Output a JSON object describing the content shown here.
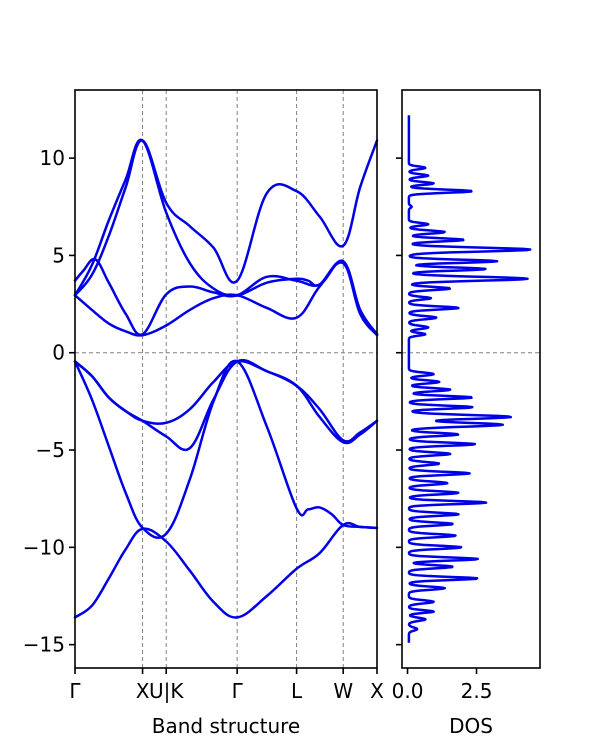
{
  "colors": {
    "line": "#0000e6",
    "grid": "#808080",
    "axis": "#000000"
  },
  "chart_data": [
    {
      "type": "line",
      "xlabel": "Band structure",
      "ylabel": "",
      "ylim": [
        -16.2,
        13.5
      ],
      "yticks": [
        -15,
        -10,
        -5,
        0,
        5,
        10
      ],
      "ytick_labels": [
        "−15",
        "−10",
        "−5",
        "0",
        "5",
        "10"
      ],
      "kpoints": [
        {
          "label": "Γ",
          "x": 0
        },
        {
          "label": "X",
          "x": 1.0
        },
        {
          "label": "U|K",
          "x": 1.35
        },
        {
          "label": "Γ",
          "x": 2.4
        },
        {
          "label": "L",
          "x": 3.28
        },
        {
          "label": "W",
          "x": 3.97
        },
        {
          "label": "X",
          "x": 4.47
        }
      ],
      "xlim": [
        0,
        4.47
      ],
      "fermi_level": 0,
      "series": [
        {
          "x": [
            0,
            0.25,
            0.5,
            0.75,
            1.0,
            1.35,
            1.7,
            2.05,
            2.4,
            2.84,
            3.28,
            3.62,
            3.97,
            4.22,
            4.47
          ],
          "values": [
            -13.6,
            -13.0,
            -11.6,
            -10.1,
            -9.05,
            -9.7,
            -11.2,
            -12.8,
            -13.6,
            -12.5,
            -11.1,
            -10.3,
            -8.85,
            -8.95,
            -9.0
          ]
        },
        {
          "x": [
            0,
            0.25,
            0.5,
            0.75,
            1.0,
            1.35,
            1.7,
            2.05,
            2.4,
            2.84,
            3.28,
            3.45,
            3.62,
            3.8,
            3.97,
            4.22,
            4.47
          ],
          "values": [
            -0.45,
            -2.4,
            -4.8,
            -7.2,
            -9.0,
            -9.3,
            -6.5,
            -2.5,
            -0.45,
            -3.8,
            -8.0,
            -8.05,
            -7.95,
            -8.3,
            -8.85,
            -8.95,
            -9.0
          ]
        },
        {
          "x": [
            0,
            0.25,
            0.5,
            0.75,
            1.0,
            1.35,
            1.7,
            2.05,
            2.4,
            2.84,
            3.28,
            3.62,
            3.97,
            4.22,
            4.47
          ],
          "values": [
            -0.45,
            -1.2,
            -2.3,
            -3.0,
            -3.5,
            -4.3,
            -4.9,
            -2.4,
            -0.45,
            -0.95,
            -1.7,
            -3.3,
            -4.6,
            -4.2,
            -3.5
          ]
        },
        {
          "x": [
            0,
            0.25,
            0.5,
            0.75,
            1.0,
            1.35,
            1.7,
            2.05,
            2.4,
            2.84,
            3.28,
            3.62,
            3.97,
            4.22,
            4.47
          ],
          "values": [
            -0.45,
            -1.2,
            -2.3,
            -3.0,
            -3.5,
            -3.6,
            -2.9,
            -1.5,
            -0.45,
            -0.95,
            -1.7,
            -2.9,
            -4.5,
            -4.1,
            -3.5
          ]
        },
        {
          "x": [
            0,
            0.25,
            0.5,
            0.75,
            1.0,
            1.35,
            1.7,
            2.05,
            2.4,
            2.84,
            3.28,
            3.62,
            3.97,
            4.22,
            4.47
          ],
          "values": [
            2.95,
            2.2,
            1.5,
            1.1,
            0.9,
            1.4,
            2.2,
            2.8,
            2.95,
            2.3,
            1.8,
            3.4,
            4.6,
            2.0,
            0.9
          ]
        },
        {
          "x": [
            0,
            0.25,
            0.5,
            0.75,
            1.0,
            1.35,
            1.7,
            2.05,
            2.4,
            2.84,
            3.28,
            3.62,
            3.97,
            4.22,
            4.47
          ],
          "values": [
            2.95,
            4.0,
            6.0,
            8.5,
            10.9,
            7.7,
            6.5,
            5.4,
            3.7,
            8.2,
            8.3,
            7.0,
            5.5,
            8.5,
            10.9
          ]
        },
        {
          "x": [
            0,
            0.25,
            0.5,
            0.75,
            1.0,
            1.35,
            1.7,
            2.05,
            2.4,
            2.84,
            3.28,
            3.45,
            3.62,
            3.97,
            4.22,
            4.47
          ],
          "values": [
            2.95,
            4.5,
            6.8,
            8.9,
            10.9,
            7.2,
            4.6,
            3.3,
            2.95,
            3.6,
            3.8,
            3.7,
            3.5,
            4.7,
            2.2,
            0.95
          ]
        },
        {
          "x": [
            0,
            0.12,
            0.3,
            0.5,
            0.75,
            1.0,
            1.35,
            1.7,
            2.05,
            2.4,
            2.84,
            3.28,
            3.62,
            3.97,
            4.22,
            4.47
          ],
          "values": [
            3.7,
            4.2,
            4.8,
            3.6,
            2.0,
            0.95,
            3.0,
            3.4,
            3.1,
            2.95,
            3.9,
            3.7,
            3.5,
            4.7,
            2.2,
            0.95
          ]
        }
      ]
    },
    {
      "type": "line",
      "xlabel": "DOS",
      "xlim": [
        -0.2,
        4.8
      ],
      "xticks": [
        0.0,
        2.5
      ],
      "xtick_labels": [
        "0.0",
        "2.5"
      ],
      "ylim": [
        -16.2,
        13.5
      ],
      "peaks": [
        {
          "e": -14.9,
          "w": 0.05,
          "a": 0.0
        },
        {
          "e": -14.2,
          "w": 0.08,
          "a": 0.3
        },
        {
          "e": -13.7,
          "w": 0.08,
          "a": 0.6
        },
        {
          "e": -13.3,
          "w": 0.07,
          "a": 0.9
        },
        {
          "e": -12.8,
          "w": 0.08,
          "a": 0.9
        },
        {
          "e": -12.1,
          "w": 0.08,
          "a": 1.3
        },
        {
          "e": -11.6,
          "w": 0.08,
          "a": 2.5
        },
        {
          "e": -11.0,
          "w": 0.08,
          "a": 1.6
        },
        {
          "e": -10.6,
          "w": 0.08,
          "a": 2.5
        },
        {
          "e": -10.0,
          "w": 0.08,
          "a": 1.9
        },
        {
          "e": -9.4,
          "w": 0.08,
          "a": 1.7
        },
        {
          "e": -8.8,
          "w": 0.08,
          "a": 1.6
        },
        {
          "e": -8.3,
          "w": 0.08,
          "a": 1.8
        },
        {
          "e": -7.7,
          "w": 0.08,
          "a": 2.8
        },
        {
          "e": -7.2,
          "w": 0.08,
          "a": 1.8
        },
        {
          "e": -6.7,
          "w": 0.08,
          "a": 1.4
        },
        {
          "e": -6.2,
          "w": 0.08,
          "a": 2.2
        },
        {
          "e": -5.7,
          "w": 0.08,
          "a": 1.1
        },
        {
          "e": -5.2,
          "w": 0.08,
          "a": 1.5
        },
        {
          "e": -4.7,
          "w": 0.08,
          "a": 2.4
        },
        {
          "e": -4.2,
          "w": 0.08,
          "a": 1.8
        },
        {
          "e": -3.7,
          "w": 0.1,
          "a": 3.4
        },
        {
          "e": -3.3,
          "w": 0.1,
          "a": 3.7
        },
        {
          "e": -2.8,
          "w": 0.08,
          "a": 2.3
        },
        {
          "e": -2.3,
          "w": 0.08,
          "a": 2.3
        },
        {
          "e": -1.9,
          "w": 0.08,
          "a": 1.5
        },
        {
          "e": -1.5,
          "w": 0.08,
          "a": 1.1
        },
        {
          "e": -1.1,
          "w": 0.08,
          "a": 0.9
        },
        {
          "e": 0.95,
          "w": 0.07,
          "a": 0.6
        },
        {
          "e": 1.3,
          "w": 0.08,
          "a": 0.7
        },
        {
          "e": 1.8,
          "w": 0.08,
          "a": 1.0
        },
        {
          "e": 2.3,
          "w": 0.08,
          "a": 1.8
        },
        {
          "e": 2.8,
          "w": 0.07,
          "a": 0.8
        },
        {
          "e": 3.3,
          "w": 0.08,
          "a": 1.5
        },
        {
          "e": 3.8,
          "w": 0.1,
          "a": 4.3
        },
        {
          "e": 4.3,
          "w": 0.08,
          "a": 2.8
        },
        {
          "e": 4.7,
          "w": 0.08,
          "a": 3.2
        },
        {
          "e": 5.3,
          "w": 0.1,
          "a": 4.4
        },
        {
          "e": 5.8,
          "w": 0.08,
          "a": 2.0
        },
        {
          "e": 6.2,
          "w": 0.08,
          "a": 1.3
        },
        {
          "e": 6.6,
          "w": 0.07,
          "a": 0.7
        },
        {
          "e": 7.5,
          "w": 0.06,
          "a": 0.1
        },
        {
          "e": 8.3,
          "w": 0.08,
          "a": 2.3
        },
        {
          "e": 8.7,
          "w": 0.07,
          "a": 0.9
        },
        {
          "e": 9.1,
          "w": 0.07,
          "a": 0.7
        },
        {
          "e": 9.5,
          "w": 0.07,
          "a": 0.6
        }
      ],
      "baseline": 0.05,
      "emin": -14.9,
      "emax": 12.2
    }
  ]
}
